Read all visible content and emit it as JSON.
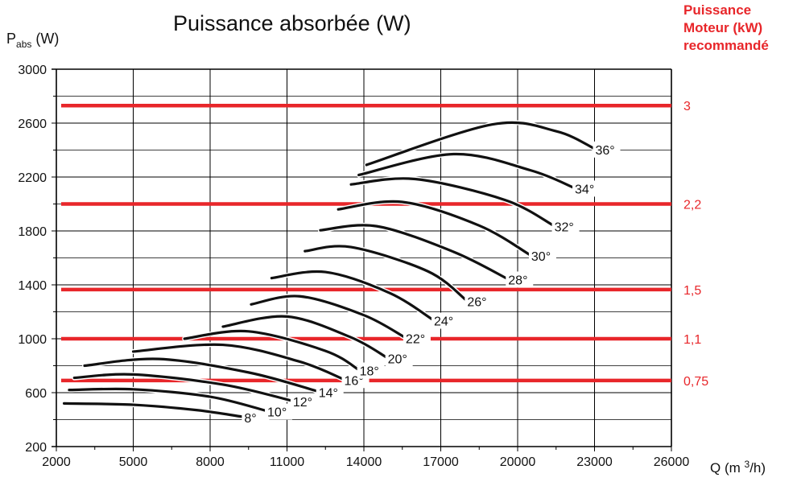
{
  "chart_data": {
    "type": "line",
    "title": "Puissance absorbée (W)",
    "ylabel": {
      "main": "P",
      "sub": "abs",
      "unit": " (W)"
    },
    "xlabel": {
      "prefix": "Q  (m ",
      "sup": "3",
      "suffix": "/h)"
    },
    "right_axis_title": [
      "Puissance",
      "Moteur (kW)",
      "recommandé"
    ],
    "xlim": [
      2000,
      26000
    ],
    "ylim": [
      200,
      3000
    ],
    "x_ticks": [
      2000,
      5000,
      8000,
      11000,
      14000,
      17000,
      20000,
      23000,
      26000
    ],
    "y_ticks": [
      200,
      600,
      1000,
      1400,
      1800,
      2200,
      2600,
      3000
    ],
    "grid": true,
    "colors": {
      "curve": "#111111",
      "motor_line": "#e8262a",
      "grid": "#000000"
    },
    "motor_power_lines": [
      {
        "label": "3",
        "y": 2730
      },
      {
        "label": "2,2",
        "y": 2000
      },
      {
        "label": "1,5",
        "y": 1365
      },
      {
        "label": "1,1",
        "y": 1000
      },
      {
        "label": "0,75",
        "y": 690
      }
    ],
    "series": [
      {
        "name": "8°",
        "x": [
          2300,
          5000,
          7500,
          9300
        ],
        "y": [
          520,
          510,
          470,
          420
        ]
      },
      {
        "name": "10°",
        "x": [
          2500,
          5000,
          8000,
          10200
        ],
        "y": [
          620,
          625,
          570,
          465
        ]
      },
      {
        "name": "12°",
        "x": [
          2700,
          5000,
          8500,
          11200
        ],
        "y": [
          710,
          735,
          660,
          540
        ]
      },
      {
        "name": "14°",
        "x": [
          3100,
          6000,
          9500,
          12200
        ],
        "y": [
          800,
          850,
          750,
          610
        ]
      },
      {
        "name": "16°",
        "x": [
          5000,
          8500,
          11500,
          13200
        ],
        "y": [
          905,
          955,
          830,
          700
        ]
      },
      {
        "name": "18°",
        "x": [
          7000,
          9500,
          12500,
          13800
        ],
        "y": [
          1000,
          1055,
          910,
          770
        ]
      },
      {
        "name": "20°",
        "x": [
          8500,
          11000,
          13500,
          14900
        ],
        "y": [
          1090,
          1165,
          1010,
          860
        ]
      },
      {
        "name": "22°",
        "x": [
          9600,
          11500,
          14000,
          15600
        ],
        "y": [
          1255,
          1315,
          1175,
          1010
        ]
      },
      {
        "name": "24°",
        "x": [
          10400,
          12500,
          15000,
          16700
        ],
        "y": [
          1450,
          1495,
          1340,
          1140
        ]
      },
      {
        "name": "26°",
        "x": [
          11700,
          13500,
          16500,
          18000
        ],
        "y": [
          1650,
          1680,
          1500,
          1285
        ]
      },
      {
        "name": "28°",
        "x": [
          12300,
          14500,
          17500,
          19600
        ],
        "y": [
          1805,
          1835,
          1645,
          1445
        ]
      },
      {
        "name": "30°",
        "x": [
          13000,
          15500,
          18500,
          20500
        ],
        "y": [
          1960,
          2015,
          1840,
          1620
        ]
      },
      {
        "name": "32°",
        "x": [
          13500,
          16000,
          19500,
          21400
        ],
        "y": [
          2145,
          2185,
          2030,
          1840
        ]
      },
      {
        "name": "34°",
        "x": [
          13800,
          17500,
          20500,
          22200
        ],
        "y": [
          2215,
          2370,
          2250,
          2120
        ]
      },
      {
        "name": "36°",
        "x": [
          14100,
          19000,
          21500,
          23000
        ],
        "y": [
          2290,
          2590,
          2540,
          2410
        ]
      }
    ]
  }
}
